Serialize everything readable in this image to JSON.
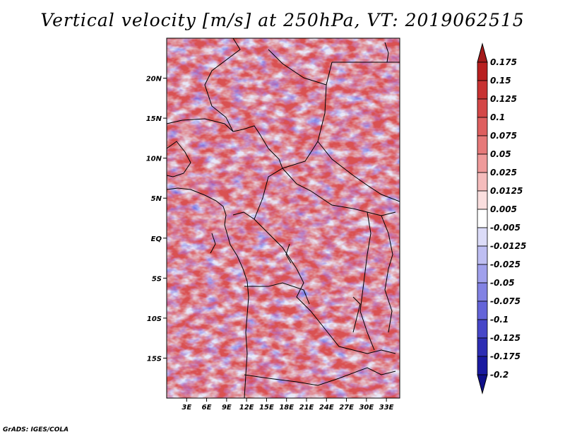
{
  "title": "Vertical velocity [m/s] at 250hPa, VT: 2019062515",
  "footer": "GrADS: IGES/COLA",
  "map": {
    "lon_range": [
      0,
      35
    ],
    "lat_range": [
      -20,
      25
    ],
    "lon_ticks": [
      "3E",
      "6E",
      "9E",
      "12E",
      "15E",
      "18E",
      "21E",
      "24E",
      "27E",
      "30E",
      "33E"
    ],
    "lat_ticks": [
      "20N",
      "15N",
      "10N",
      "5N",
      "EQ",
      "5S",
      "10S",
      "15S"
    ],
    "lon_tick_values": [
      3,
      6,
      9,
      12,
      15,
      18,
      21,
      24,
      27,
      30,
      33
    ],
    "lat_tick_values": [
      20,
      15,
      10,
      5,
      0,
      -5,
      -10,
      -15
    ]
  },
  "colorbar": {
    "labels": [
      "0.175",
      "0.15",
      "0.125",
      "0.1",
      "0.075",
      "0.05",
      "0.025",
      "0.0125",
      "0.005",
      "-0.005",
      "-0.0125",
      "-0.025",
      "-0.05",
      "-0.075",
      "-0.1",
      "-0.125",
      "-0.175",
      "-0.2"
    ],
    "colors": [
      "#a31a1a",
      "#b81f1f",
      "#c83232",
      "#d44747",
      "#de5f5f",
      "#e67979",
      "#ef9a9a",
      "#f5bcbc",
      "#fadede",
      "#ffffff",
      "#dcdcf8",
      "#bebef2",
      "#a0a0ec",
      "#8282e3",
      "#6464d9",
      "#4646c8",
      "#2d2db3",
      "#1a1aa0",
      "#10108a"
    ]
  }
}
